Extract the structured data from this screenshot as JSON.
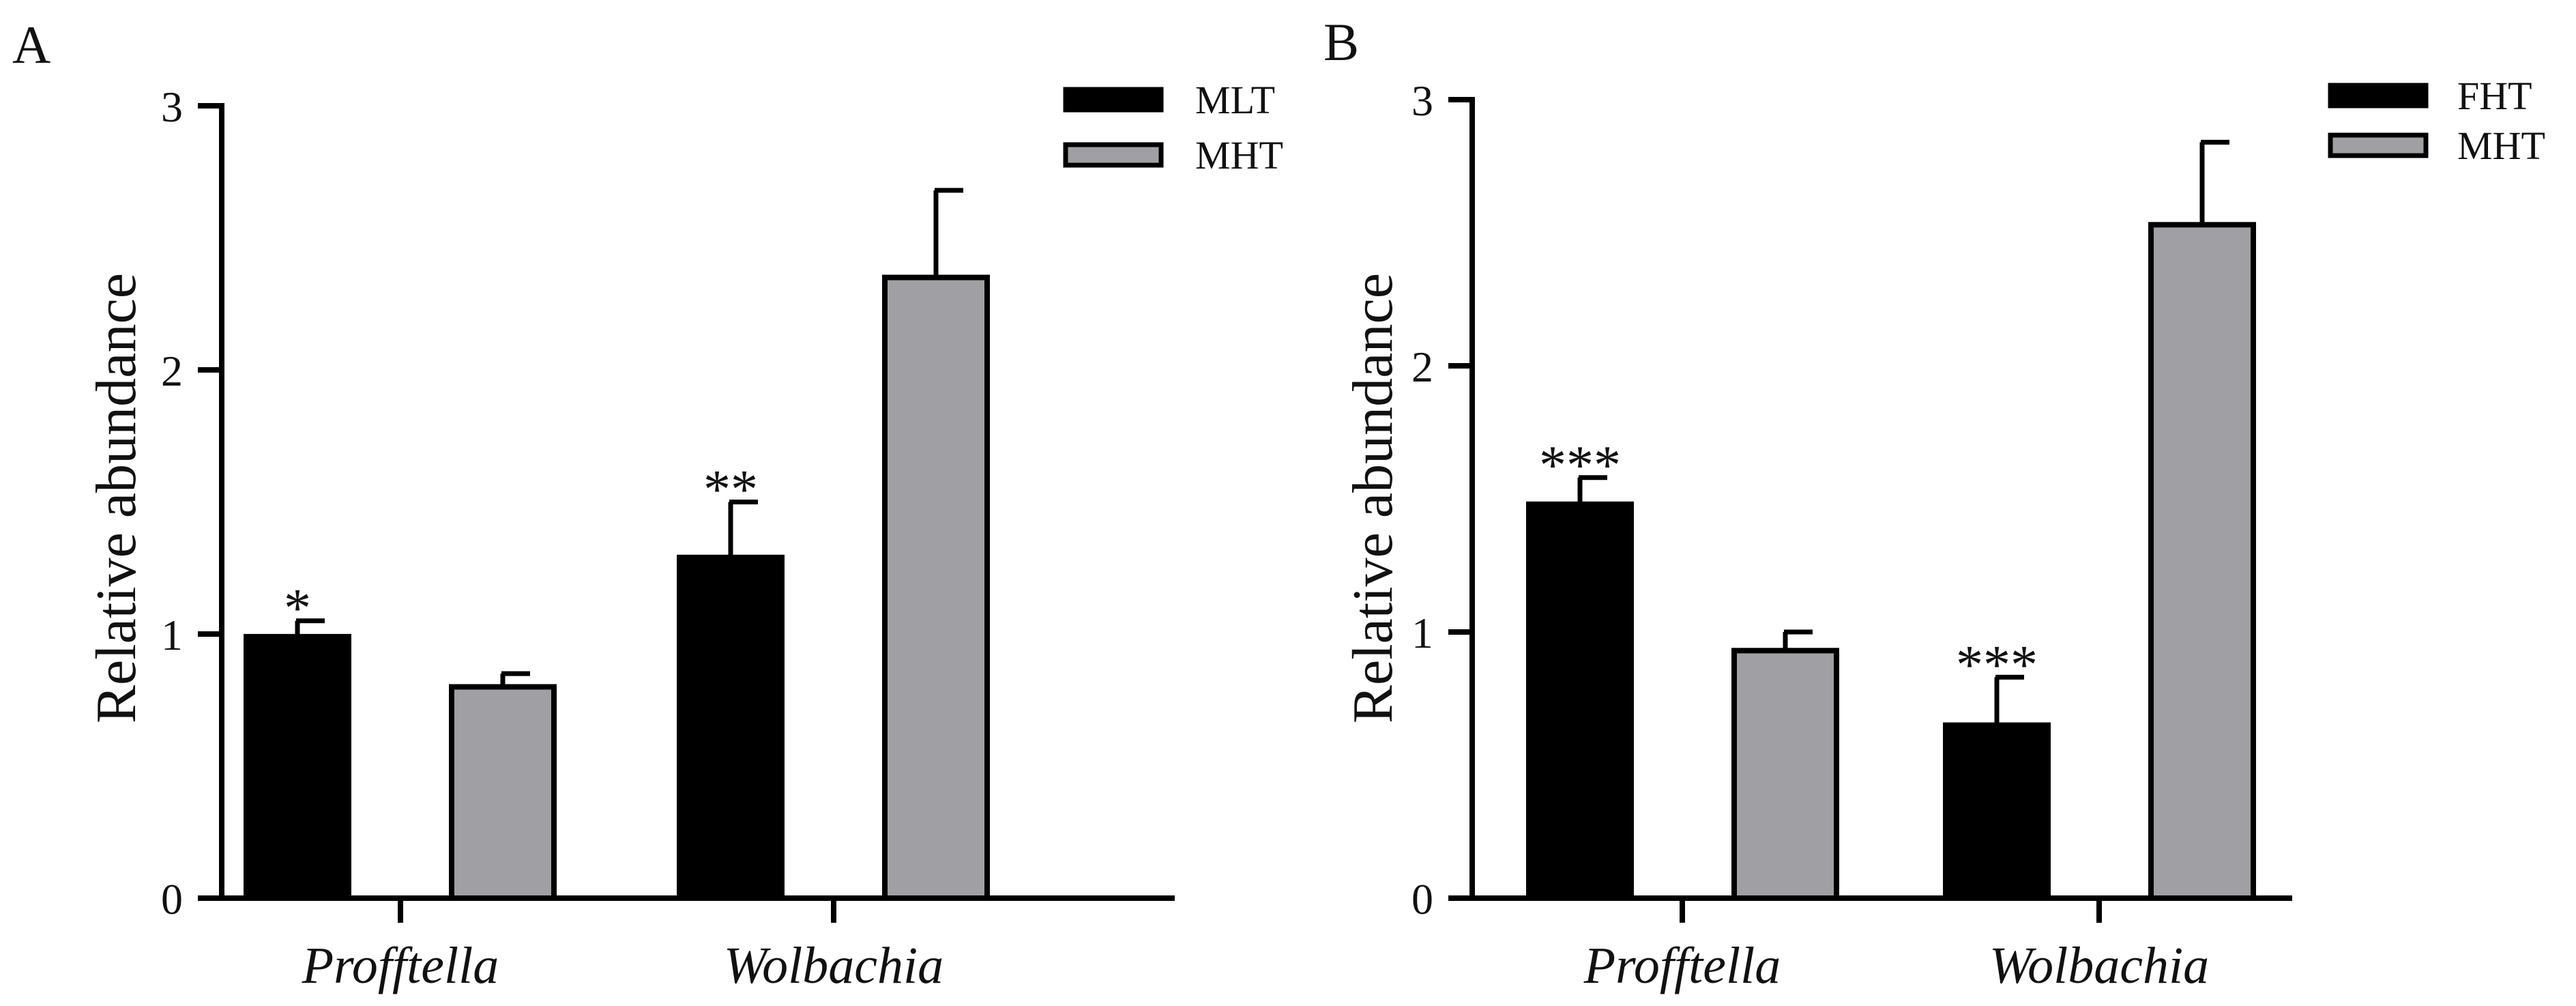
{
  "chart_data": [
    {
      "panel_label": "A",
      "type": "bar",
      "categories": [
        "Profftella",
        "Wolbachia"
      ],
      "series": [
        {
          "name": "MLT",
          "values": [
            0.99,
            1.29
          ],
          "errors": [
            0.06,
            0.21
          ],
          "color": "#000000"
        },
        {
          "name": "MHT",
          "values": [
            0.8,
            2.35
          ],
          "errors": [
            0.05,
            0.33
          ],
          "color": "#a0a0a4"
        }
      ],
      "significance": [
        {
          "category": "Profftella",
          "series": "MLT",
          "label": "*"
        },
        {
          "category": "Wolbachia",
          "series": "MLT",
          "label": "**"
        }
      ],
      "ylabel": "Relative abundance",
      "xlabel": "",
      "ylim": [
        0,
        3
      ],
      "yticks": [
        "0",
        "1",
        "2",
        "3"
      ],
      "legend_position": "top-right"
    },
    {
      "panel_label": "B",
      "type": "bar",
      "categories": [
        "Profftella",
        "Wolbachia"
      ],
      "series": [
        {
          "name": "FHT",
          "values": [
            1.48,
            0.65
          ],
          "errors": [
            0.1,
            0.18
          ],
          "color": "#000000"
        },
        {
          "name": "MHT",
          "values": [
            0.93,
            2.53
          ],
          "errors": [
            0.07,
            0.31
          ],
          "color": "#a0a0a4"
        }
      ],
      "significance": [
        {
          "category": "Profftella",
          "series": "FHT",
          "label": "***"
        },
        {
          "category": "Wolbachia",
          "series": "FHT",
          "label": "***"
        }
      ],
      "ylabel": "Relative abundance",
      "xlabel": "",
      "ylim": [
        0,
        3
      ],
      "yticks": [
        "0",
        "1",
        "2",
        "3"
      ],
      "legend_position": "top-right"
    }
  ]
}
